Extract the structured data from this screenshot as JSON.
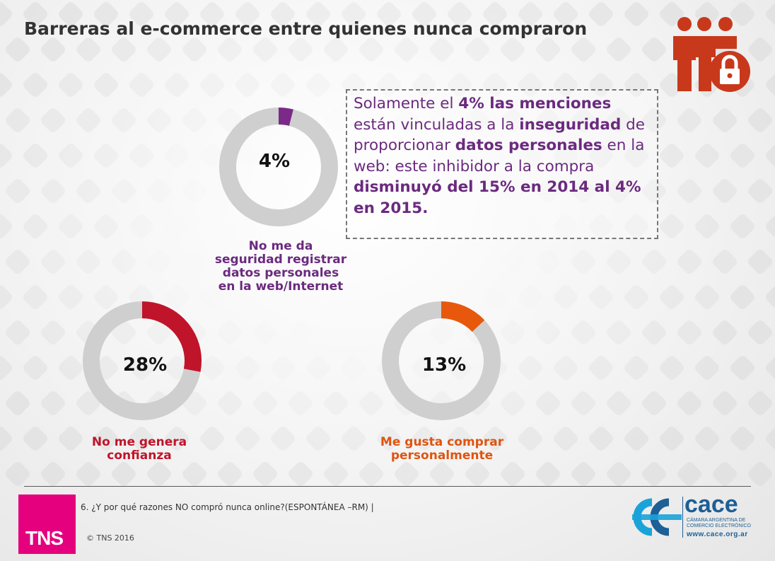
{
  "title": "Barreras al e-commerce entre quienes nunca compraron",
  "callout": {
    "parts": [
      {
        "text": "Solamente el ",
        "bold": false
      },
      {
        "text": "4% las menciones",
        "bold": true
      },
      {
        "text": " están vinculadas a la ",
        "bold": false
      },
      {
        "text": "inseguridad",
        "bold": true
      },
      {
        "text": " de proporcionar ",
        "bold": false
      },
      {
        "text": "datos personales",
        "bold": true
      },
      {
        "text": " en la web: este inhibidor a la compra ",
        "bold": false
      },
      {
        "text": "disminuyó del 15% en 2014 al 4% en 2015.",
        "bold": true
      }
    ]
  },
  "chart_data": {
    "type": "pie",
    "title": "",
    "series": [
      {
        "name": "No me da seguridad registrar datos personales en la web/Internet",
        "value": 4,
        "label": "4%",
        "color": "#7b2a8a"
      },
      {
        "name": "No me genera confianza",
        "value": 28,
        "label": "28%",
        "color": "#c0142a"
      },
      {
        "name": "Me gusta comprar personalmente",
        "value": 13,
        "label": "13%",
        "color": "#e8580c"
      }
    ],
    "track_color": "#cfcfcf"
  },
  "footer": {
    "question": "6. ¿Y por qué razones NO compró nunca online?(ESPONTÁNEA –RM) |",
    "copyright": "© TNS 2016",
    "tns_logo_text": "TNS",
    "cace": {
      "name": "cace",
      "subtitle_line1": "CÁMARA ARGENTINA DE",
      "subtitle_line2": "COMERCIO ELECTRÓNICO",
      "url": "www.cace.org.ar"
    }
  }
}
